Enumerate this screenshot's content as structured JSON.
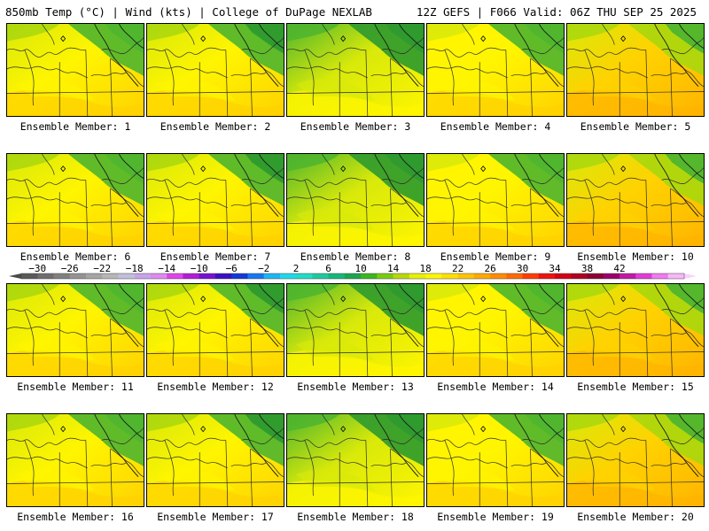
{
  "header": {
    "left_text": "850mb Temp (°C) | Wind (kts) | College of DuPage NEXLAB",
    "right_text": "12Z GEFS | F066 Valid: 06Z THU SEP 25 2025"
  },
  "panel_label_prefix": "Ensemble Member: ",
  "members": [
    1,
    2,
    3,
    4,
    5,
    6,
    7,
    8,
    9,
    10,
    11,
    12,
    13,
    14,
    15,
    16,
    17,
    18,
    19,
    20
  ],
  "colorbar": {
    "tick_labels": [
      "-30",
      "-26",
      "-22",
      "-18",
      "-14",
      "-10",
      "-6",
      "-2",
      "2",
      "6",
      "10",
      "14",
      "18",
      "22",
      "26",
      "30",
      "34",
      "38",
      "42"
    ],
    "colors": [
      "#5a5a5a",
      "#6e6e6e",
      "#808080",
      "#939393",
      "#a5a5a5",
      "#b7b7b7",
      "#c2bfdc",
      "#c9a3ea",
      "#df88f2",
      "#e044e8",
      "#b31cd6",
      "#7a0fd1",
      "#3a10c0",
      "#1238d6",
      "#1478f0",
      "#1cb6f5",
      "#1ed8e8",
      "#20dcc6",
      "#1ec89e",
      "#14b77a",
      "#1aa551",
      "#3ab71c",
      "#7acb10",
      "#b7d80c",
      "#e7ef07",
      "#fff700",
      "#ffe000",
      "#ffc500",
      "#ffa900",
      "#ff8c00",
      "#ff6a00",
      "#ff3d00",
      "#f01010",
      "#d40014",
      "#b00020",
      "#8c0030",
      "#9a006a",
      "#c01aa2",
      "#e23cd8",
      "#f07af2",
      "#f8b8f8"
    ]
  },
  "map_colors": {
    "dark_green": "#2e9a2e",
    "green": "#4fb52e",
    "lime": "#a9d70d",
    "yellow_green": "#d8e90a",
    "yellow": "#fff500",
    "gold": "#ffd200",
    "orange": "#ffb400"
  }
}
